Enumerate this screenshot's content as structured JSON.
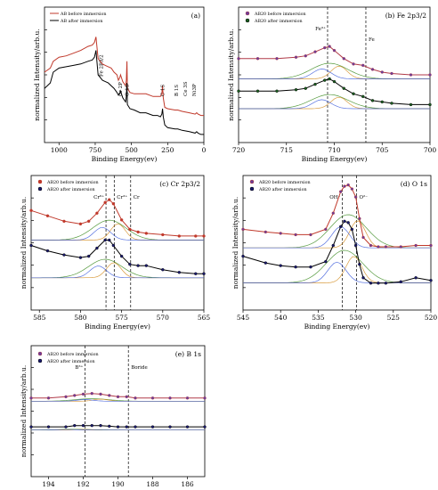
{
  "chart_data": [
    {
      "type": "line",
      "panel_label": "(a)",
      "xlabel": "Binding Energy(ev)",
      "ylabel": "normalized Intensity/arb.u.",
      "xlim": [
        1100,
        0
      ],
      "xticks": [
        "1000",
        "750",
        "500",
        "250",
        "0"
      ],
      "xtick_values": [
        1000,
        750,
        500,
        250,
        0
      ],
      "legend_position": "top-left",
      "series": [
        {
          "name": "AB before immersion",
          "color": "#c0392b",
          "x": [
            1100,
            1060,
            1040,
            1000,
            950,
            900,
            850,
            800,
            770,
            755,
            745,
            730,
            700,
            680,
            660,
            640,
            620,
            600,
            590,
            580,
            575,
            560,
            540,
            535,
            531,
            528,
            510,
            480,
            440,
            400,
            350,
            320,
            300,
            290,
            285,
            280,
            270,
            250,
            200,
            180,
            150,
            100,
            60,
            50,
            40,
            20,
            0
          ],
          "y": [
            0.52,
            0.55,
            0.6,
            0.63,
            0.64,
            0.66,
            0.68,
            0.71,
            0.72,
            0.74,
            0.78,
            0.62,
            0.58,
            0.57,
            0.56,
            0.55,
            0.52,
            0.5,
            0.46,
            0.48,
            0.5,
            0.45,
            0.42,
            0.46,
            0.6,
            0.4,
            0.37,
            0.36,
            0.36,
            0.36,
            0.34,
            0.34,
            0.34,
            0.36,
            0.42,
            0.33,
            0.26,
            0.25,
            0.24,
            0.24,
            0.23,
            0.22,
            0.21,
            0.22,
            0.21,
            0.2,
            0.2
          ]
        },
        {
          "name": "AB after immersion",
          "color": "#000000",
          "x": [
            1100,
            1060,
            1040,
            1000,
            950,
            900,
            850,
            800,
            770,
            755,
            745,
            730,
            700,
            680,
            660,
            640,
            620,
            600,
            590,
            580,
            575,
            560,
            540,
            535,
            531,
            528,
            510,
            480,
            440,
            400,
            350,
            320,
            300,
            290,
            285,
            280,
            270,
            250,
            200,
            180,
            150,
            100,
            60,
            50,
            40,
            20,
            0
          ],
          "y": [
            0.4,
            0.44,
            0.52,
            0.55,
            0.56,
            0.57,
            0.58,
            0.6,
            0.61,
            0.63,
            0.68,
            0.5,
            0.46,
            0.45,
            0.44,
            0.42,
            0.4,
            0.37,
            0.35,
            0.36,
            0.38,
            0.33,
            0.3,
            0.34,
            0.44,
            0.28,
            0.25,
            0.24,
            0.22,
            0.22,
            0.2,
            0.2,
            0.19,
            0.21,
            0.25,
            0.19,
            0.13,
            0.11,
            0.1,
            0.1,
            0.09,
            0.08,
            0.07,
            0.08,
            0.07,
            0.06,
            0.06
          ]
        }
      ],
      "annotations": [
        {
          "text": "Fe 2P3/2",
          "x": 710
        },
        {
          "text": "Cr 2P",
          "x": 577
        },
        {
          "text": "O 1S",
          "x": 531
        },
        {
          "text": "C 1S",
          "x": 285
        },
        {
          "text": "B 1S",
          "x": 190
        },
        {
          "text": "Ce 3S",
          "x": 130
        },
        {
          "text": "Ni3P",
          "x": 67
        }
      ]
    },
    {
      "type": "scatter",
      "panel_label": "(b) Fe 2p3/2",
      "xlabel": "Binding Energy(ev)",
      "ylabel": "normalized Intensity/arb.u.",
      "xlim": [
        720,
        700
      ],
      "xticks": [
        "720",
        "715",
        "710",
        "705",
        "700"
      ],
      "xtick_values": [
        720,
        715,
        710,
        705,
        700
      ],
      "legend_position": "top-left",
      "reference_lines": [
        {
          "x": 710.7,
          "label": "Fe³⁺"
        },
        {
          "x": 706.7,
          "label": "Fe"
        }
      ],
      "series": [
        {
          "name": "AB20 before immersion",
          "color": "#b03a48",
          "marker": "#6a3d9a",
          "x": [
            720,
            718,
            716,
            714,
            713,
            712,
            711,
            710.5,
            710,
            709,
            708,
            707,
            706,
            705,
            704,
            702,
            700
          ],
          "y": [
            0.62,
            0.62,
            0.62,
            0.63,
            0.64,
            0.67,
            0.7,
            0.71,
            0.68,
            0.62,
            0.58,
            0.57,
            0.54,
            0.52,
            0.51,
            0.5,
            0.5
          ]
        },
        {
          "name": "AB20 after immersion",
          "color": "#000000",
          "marker": "#1b5e20",
          "x": [
            720,
            718,
            716,
            714,
            713,
            712,
            711,
            710.5,
            710,
            709,
            708,
            707,
            706,
            705,
            704,
            702,
            700
          ],
          "y": [
            0.38,
            0.38,
            0.38,
            0.39,
            0.4,
            0.43,
            0.46,
            0.47,
            0.45,
            0.4,
            0.36,
            0.34,
            0.31,
            0.3,
            0.29,
            0.28,
            0.28
          ]
        }
      ]
    },
    {
      "type": "scatter",
      "panel_label": "(c) Cr 2p3/2",
      "xlabel": "Binding Energy(ev)",
      "ylabel": "normalized Intensity/arb.u.",
      "xlim": [
        586,
        565
      ],
      "xticks": [
        "585",
        "580",
        "575",
        "570",
        "565"
      ],
      "xtick_values": [
        585,
        580,
        575,
        570,
        565
      ],
      "legend_position": "top-left",
      "reference_lines": [
        {
          "x": 576.9,
          "label": "Cr⁶⁺"
        },
        {
          "x": 575.9,
          "label": "Cr³⁺"
        },
        {
          "x": 573.9,
          "label": "Cr"
        }
      ],
      "series": [
        {
          "name": "AB20 before immersion",
          "color": "#c0392b",
          "marker": "#c0392b",
          "x": [
            586,
            584,
            582,
            580,
            579,
            578,
            577,
            576.5,
            576,
            575,
            574,
            573,
            572,
            570,
            568,
            566,
            565
          ],
          "y": [
            0.74,
            0.7,
            0.66,
            0.64,
            0.66,
            0.72,
            0.8,
            0.82,
            0.79,
            0.67,
            0.6,
            0.58,
            0.57,
            0.56,
            0.55,
            0.55,
            0.55
          ]
        },
        {
          "name": "AB20 after immersion",
          "color": "#000000",
          "marker": "#1a1a6e",
          "x": [
            586,
            584,
            582,
            580,
            579,
            578,
            577,
            576.5,
            576,
            575,
            574,
            573,
            572,
            570,
            568,
            566,
            565
          ],
          "y": [
            0.48,
            0.44,
            0.41,
            0.39,
            0.4,
            0.46,
            0.52,
            0.52,
            0.48,
            0.4,
            0.34,
            0.33,
            0.33,
            0.3,
            0.28,
            0.27,
            0.27
          ]
        }
      ]
    },
    {
      "type": "scatter",
      "panel_label": "(d) O 1s",
      "xlabel": "Binding Energy(ev)",
      "ylabel": "normalized Intensity/arb.u.",
      "xlim": [
        545,
        520
      ],
      "xticks": [
        "545",
        "540",
        "535",
        "530",
        "525",
        "520"
      ],
      "xtick_values": [
        545,
        540,
        535,
        530,
        525,
        520
      ],
      "legend_position": "top-left",
      "reference_lines": [
        {
          "x": 531.8,
          "label": "OH⁻"
        },
        {
          "x": 529.9,
          "label": "O²⁻"
        }
      ],
      "series": [
        {
          "name": "AB20 before immersion",
          "color": "#c0392b",
          "marker": "#6a3d9a",
          "x": [
            545,
            542,
            540,
            538,
            536,
            534,
            533,
            532,
            531.5,
            531,
            530.5,
            530,
            529.5,
            529,
            528,
            527,
            526,
            524,
            522,
            520
          ],
          "y": [
            0.6,
            0.58,
            0.57,
            0.56,
            0.56,
            0.6,
            0.72,
            0.88,
            0.92,
            0.93,
            0.9,
            0.84,
            0.68,
            0.54,
            0.48,
            0.47,
            0.47,
            0.47,
            0.48,
            0.48
          ]
        },
        {
          "name": "AB20 after immersion",
          "color": "#000000",
          "marker": "#1a1a6e",
          "x": [
            545,
            542,
            540,
            538,
            536,
            534,
            533,
            532,
            531.5,
            531,
            530.5,
            530,
            529.5,
            529,
            528,
            527,
            526,
            524,
            522,
            520
          ],
          "y": [
            0.4,
            0.35,
            0.33,
            0.32,
            0.32,
            0.36,
            0.48,
            0.62,
            0.66,
            0.65,
            0.6,
            0.48,
            0.34,
            0.24,
            0.2,
            0.2,
            0.2,
            0.21,
            0.24,
            0.22
          ]
        }
      ]
    },
    {
      "type": "scatter",
      "panel_label": "(e) B 1s",
      "xlabel": "Binding Energy(ev)",
      "ylabel": "normalized Intensity/arb.u.",
      "xlim": [
        195,
        185
      ],
      "xticks": [
        "194",
        "192",
        "190",
        "188",
        "186"
      ],
      "xtick_values": [
        194,
        192,
        190,
        188,
        186
      ],
      "legend_position": "top-left",
      "reference_lines": [
        {
          "x": 191.9,
          "label": "B³⁺"
        },
        {
          "x": 189.4,
          "label": "Boride"
        }
      ],
      "series": [
        {
          "name": "AB20 before immersion",
          "color": "#b03a48",
          "marker": "#6a3d9a",
          "x": [
            195,
            194,
            193,
            192.5,
            192,
            191.5,
            191,
            190.5,
            190,
            189.5,
            189,
            188,
            187,
            186,
            185
          ],
          "y": [
            0.6,
            0.6,
            0.61,
            0.62,
            0.63,
            0.635,
            0.63,
            0.62,
            0.61,
            0.61,
            0.6,
            0.6,
            0.6,
            0.6,
            0.6
          ]
        },
        {
          "name": "AB20 after immersion",
          "color": "#000000",
          "marker": "#1a1a6e",
          "x": [
            195,
            194,
            193,
            192.5,
            192,
            191.5,
            191,
            190.5,
            190,
            189.5,
            189,
            188,
            187,
            186,
            185
          ],
          "y": [
            0.38,
            0.38,
            0.38,
            0.39,
            0.39,
            0.39,
            0.39,
            0.385,
            0.38,
            0.38,
            0.38,
            0.38,
            0.38,
            0.38,
            0.38
          ]
        }
      ]
    }
  ]
}
